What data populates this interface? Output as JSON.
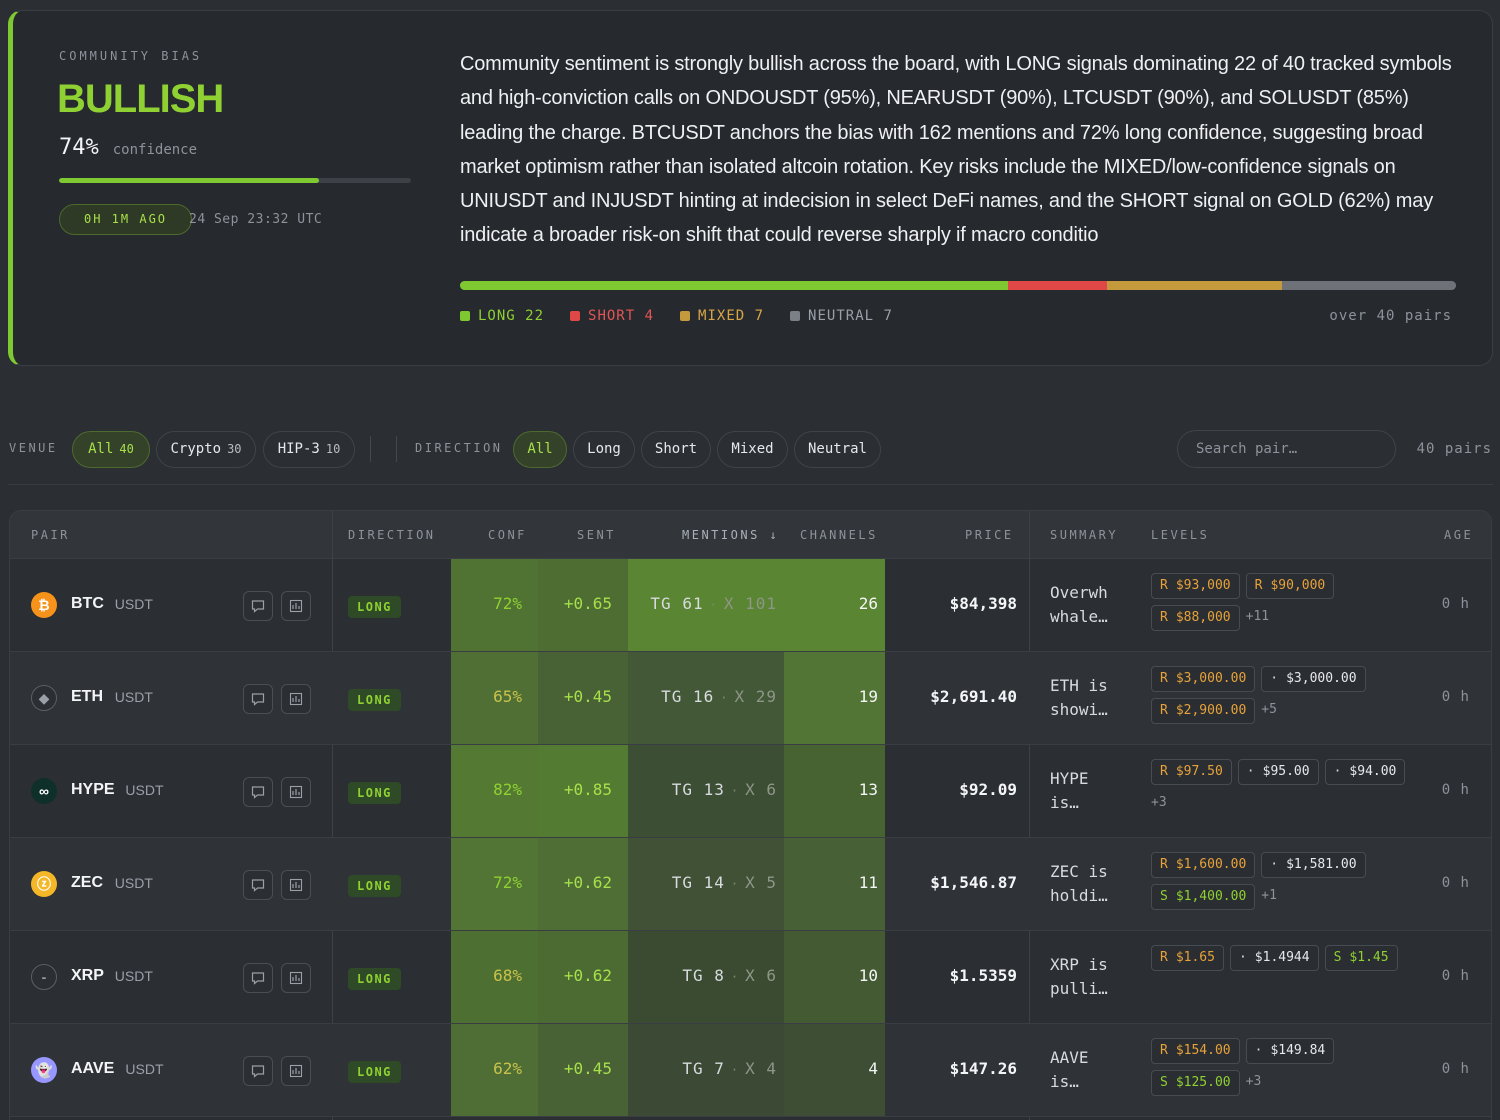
{
  "bias": {
    "eyebrow": "COMMUNITY BIAS",
    "label": "BULLISH",
    "confidence_value": "74%",
    "confidence_label": "confidence",
    "confidence_fraction": 0.74,
    "ago": "0H 1M AGO",
    "timestamp": "24 Sep 23:32 UTC",
    "summary": "Community sentiment is strongly bullish across the board, with LONG signals dominating 22 of 40 tracked symbols and high-conviction calls on ONDOUSDT (95%), NEARUSDT (90%), LTCUSDT (90%), and SOLUSDT (85%) leading the charge. BTCUSDT anchors the bias with 162 mentions and 72% long confidence, suggesting broad market optimism rather than isolated altcoin rotation. Key risks include the MIXED/low-confidence signals on UNIUSDT and INJUSDT hinting at indecision in select DeFi names, and the SHORT signal on GOLD (62%) may indicate a broader risk-on shift that could reverse sharply if macro conditio",
    "distribution": [
      {
        "label": "LONG",
        "count": 22,
        "color": "#7ec832"
      },
      {
        "label": "SHORT",
        "count": 4,
        "color": "#e04848"
      },
      {
        "label": "MIXED",
        "count": 7,
        "color": "#c49a3c"
      },
      {
        "label": "NEUTRAL",
        "count": 7,
        "color": "#6e7278"
      }
    ],
    "legend": {
      "long": "LONG 22",
      "short": "SHORT 4",
      "mixed": "MIXED 7",
      "neutral": "NEUTRAL 7",
      "note": "over 40 pairs"
    }
  },
  "filters": {
    "venue_label": "VENUE",
    "venue_chips": [
      {
        "label": "All",
        "count": "40"
      },
      {
        "label": "Crypto",
        "count": "30"
      },
      {
        "label": "HIP-3",
        "count": "10"
      }
    ],
    "direction_label": "DIRECTION",
    "direction_chips": [
      "All",
      "Long",
      "Short",
      "Mixed",
      "Neutral"
    ],
    "search_placeholder": "Search pair…",
    "pairs_count": "40 pairs"
  },
  "table": {
    "headers": {
      "pair": "PAIR",
      "direction": "DIRECTION",
      "conf": "CONF",
      "sent": "SENT",
      "mentions": "MENTIONS ↓",
      "channels": "CHANNELS",
      "price": "PRICE",
      "summary": "SUMMARY",
      "levels": "LEVELS",
      "age": "AGE"
    },
    "rows": [
      {
        "symbol": "BTC",
        "quote": "USDT",
        "coin_glyph": "₿",
        "coin_color": "#f7931a",
        "direction": "LONG",
        "conf": "72%",
        "conf_level": 0.72,
        "sent": "+0.65",
        "sent_level": 0.65,
        "tg": "TG 61",
        "x": "X 101",
        "mentions_level": 1.0,
        "channels": "26",
        "channels_level": 1.0,
        "price": "$84,398",
        "summary_l1": "Overwh",
        "summary_l2": "whale…",
        "levels": [
          {
            "kind": "r",
            "key": "R",
            "value": "$93,000"
          },
          {
            "kind": "r",
            "key": "R",
            "value": "$90,000"
          },
          {
            "kind": "r",
            "key": "R",
            "value": "$88,000"
          }
        ],
        "more": "+11",
        "age": "0 h"
      },
      {
        "symbol": "ETH",
        "quote": "USDT",
        "coin_glyph": "◆",
        "coin_color": "#2b2e33",
        "direction": "LONG",
        "conf": "65%",
        "conf_level": 0.65,
        "sent": "+0.45",
        "sent_level": 0.45,
        "tg": "TG 16",
        "x": "X 29",
        "mentions_level": 0.3,
        "channels": "19",
        "channels_level": 0.73,
        "price": "$2,691.40",
        "summary_l1": "ETH is",
        "summary_l2": "showi…",
        "levels": [
          {
            "kind": "r",
            "key": "R",
            "value": "$3,000.00"
          },
          {
            "kind": "n",
            "key": "·",
            "value": "$3,000.00"
          },
          {
            "kind": "r",
            "key": "R",
            "value": "$2,900.00"
          }
        ],
        "more": "+5",
        "age": "0 h"
      },
      {
        "symbol": "HYPE",
        "quote": "USDT",
        "coin_glyph": "∞",
        "coin_color": "#0f2f2a",
        "direction": "LONG",
        "conf": "82%",
        "conf_level": 0.82,
        "sent": "+0.85",
        "sent_level": 0.85,
        "tg": "TG 13",
        "x": "X 6",
        "mentions_level": 0.2,
        "channels": "13",
        "channels_level": 0.5,
        "price": "$92.09",
        "summary_l1": "HYPE",
        "summary_l2": "is…",
        "levels": [
          {
            "kind": "r",
            "key": "R",
            "value": "$97.50"
          },
          {
            "kind": "n",
            "key": "·",
            "value": "$95.00"
          },
          {
            "kind": "n",
            "key": "·",
            "value": "$94.00"
          }
        ],
        "more": "+3",
        "age": "0 h"
      },
      {
        "symbol": "ZEC",
        "quote": "USDT",
        "coin_glyph": "ⓩ",
        "coin_color": "#f4b728",
        "direction": "LONG",
        "conf": "72%",
        "conf_level": 0.72,
        "sent": "+0.62",
        "sent_level": 0.62,
        "tg": "TG 14",
        "x": "X 5",
        "mentions_level": 0.2,
        "channels": "11",
        "channels_level": 0.42,
        "price": "$1,546.87",
        "summary_l1": "ZEC is",
        "summary_l2": "holdi…",
        "levels": [
          {
            "kind": "r",
            "key": "R",
            "value": "$1,600.00"
          },
          {
            "kind": "n",
            "key": "·",
            "value": "$1,581.00"
          },
          {
            "kind": "s",
            "key": "S",
            "value": "$1,400.00"
          }
        ],
        "more": "+1",
        "age": "0 h"
      },
      {
        "symbol": "XRP",
        "quote": "USDT",
        "coin_glyph": "-",
        "coin_color": "#2b2e33",
        "direction": "LONG",
        "conf": "68%",
        "conf_level": 0.68,
        "sent": "+0.62",
        "sent_level": 0.62,
        "tg": "TG 8",
        "x": "X 6",
        "mentions_level": 0.15,
        "channels": "10",
        "channels_level": 0.38,
        "price": "$1.5359",
        "summary_l1": "XRP is",
        "summary_l2": "pulli…",
        "levels": [
          {
            "kind": "r",
            "key": "R",
            "value": "$1.65"
          },
          {
            "kind": "n",
            "key": "·",
            "value": "$1.4944"
          },
          {
            "kind": "s",
            "key": "S",
            "value": "$1.45"
          }
        ],
        "more": "",
        "age": "0 h"
      },
      {
        "symbol": "AAVE",
        "quote": "USDT",
        "coin_glyph": "👻",
        "coin_color": "#9896ff",
        "direction": "LONG",
        "conf": "62%",
        "conf_level": 0.62,
        "sent": "+0.45",
        "sent_level": 0.45,
        "tg": "TG 7",
        "x": "X 4",
        "mentions_level": 0.1,
        "channels": "4",
        "channels_level": 0.15,
        "price": "$147.26",
        "summary_l1": "AAVE",
        "summary_l2": "is…",
        "levels": [
          {
            "kind": "r",
            "key": "R",
            "value": "$154.00"
          },
          {
            "kind": "n",
            "key": "·",
            "value": "$149.84"
          },
          {
            "kind": "s",
            "key": "S",
            "value": "$125.00"
          }
        ],
        "more": "+3",
        "age": "0 h"
      }
    ]
  }
}
